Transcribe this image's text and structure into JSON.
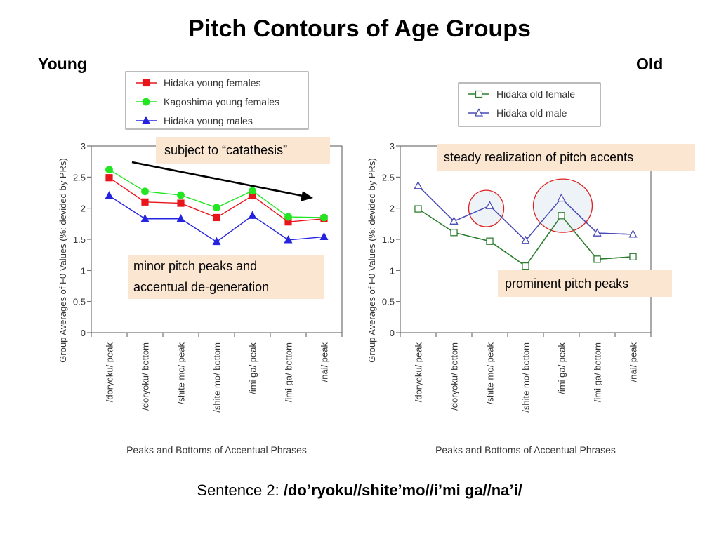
{
  "page": {
    "title": "Pitch Contours of  Age Groups",
    "left_heading": "Young",
    "right_heading": "Old",
    "sentence_label": "Sentence 2:",
    "sentence_text": "/do’ryoku//shite’mo//i’mi ga//na’i/"
  },
  "annotations": {
    "catathesis": "subject to “catathesis”",
    "minor_line1": "minor pitch peaks and",
    "minor_line2": "accentual de-generation",
    "steady": "steady realization of pitch accents",
    "prominent": "prominent pitch peaks"
  },
  "chart_data": [
    {
      "type": "line",
      "title": "",
      "xlabel": "Peaks and Bottoms of Accentual Phrases",
      "ylabel": "Group Averages of F0 Values (%: devided by PRs)",
      "ylim": [
        0,
        3
      ],
      "yticks": [
        "0",
        "0.5",
        "1",
        "1.5",
        "2",
        "2.5",
        "3"
      ],
      "grid": false,
      "legend_position": "top",
      "categories": [
        "/doryoku/ peak",
        "/doryoku/ bottom",
        "/shite mo/ peak",
        "/shite mo/  bottom",
        "/imi ga/ peak",
        "/imi ga/ bottom",
        "/nai/ peak"
      ],
      "series": [
        {
          "name": "Hidaka young females",
          "color": "#e8151b",
          "marker": "square-filled",
          "values": [
            2.49,
            2.1,
            2.08,
            1.85,
            2.2,
            1.78,
            1.83
          ]
        },
        {
          "name": "Kagoshima young females",
          "color": "#22e622",
          "marker": "circle-filled",
          "values": [
            2.62,
            2.27,
            2.21,
            2.01,
            2.28,
            1.86,
            1.85
          ]
        },
        {
          "name": "Hidaka young males",
          "color": "#2424e0",
          "marker": "triangle-filled",
          "values": [
            2.2,
            1.83,
            1.83,
            1.46,
            1.88,
            1.49,
            1.54
          ]
        }
      ]
    },
    {
      "type": "line",
      "title": "",
      "xlabel": "Peaks and Bottoms of Accentual Phrases",
      "ylabel": "Group Averages of F0 Values (%: devided by PRs)",
      "ylim": [
        0,
        3
      ],
      "yticks": [
        "0",
        "0.5",
        "1",
        "1.5",
        "2",
        "2.5",
        "3"
      ],
      "grid": false,
      "legend_position": "top",
      "categories": [
        "/doryoku/ peak",
        "/doryoku/ bottom",
        "/shite mo/ peak",
        "/shite mo/  bottom",
        "/imi ga/ peak",
        "/imi ga/ bottom",
        "/nai/ peak"
      ],
      "series": [
        {
          "name": "Hidaka old female",
          "color": "#2e7d2e",
          "marker": "square-open",
          "values": [
            1.99,
            1.61,
            1.47,
            1.07,
            1.88,
            1.18,
            1.22
          ]
        },
        {
          "name": "Hidaka old male",
          "color": "#4a4ab8",
          "marker": "triangle-open",
          "values": [
            2.36,
            1.79,
            2.04,
            1.48,
            2.16,
            1.6,
            1.58
          ]
        }
      ]
    }
  ]
}
